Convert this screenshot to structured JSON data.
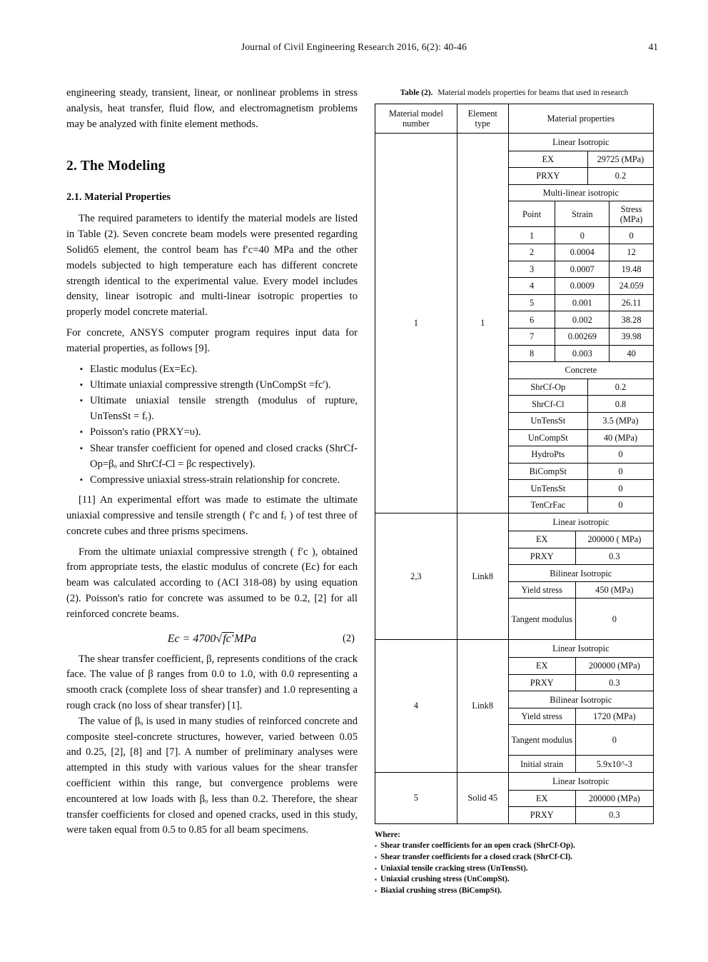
{
  "page": {
    "journal_header": "Journal of Civil Engineering Research 2016, 6(2): 40-46",
    "page_number": "41"
  },
  "left": {
    "bullet_marker": "▪",
    "p1": "engineering steady, transient, linear, or nonlinear problems in stress analysis, heat transfer, fluid flow, and electromagnetism problems may be analyzed with finite element methods.",
    "h2": "2. The Modeling",
    "h3": "2.1. Material Properties",
    "p2": "The required parameters to identify the material models are listed in Table (2). Seven concrete beam models were presented regarding Solid65 element, the control beam has f′c=40 MPa and the other models subjected to high temperature each has different concrete strength identical to the experimental value. Every model includes density, linear isotropic and multi-linear isotropic properties to properly model concrete material.",
    "p3": "For concrete, ANSYS computer program requires input data for material properties, as follows [9].",
    "bullets": [
      "Elastic modulus (Ex=Ec).",
      "Ultimate uniaxial compressive strength (UnCompSt =fc').",
      "Ultimate uniaxial tensile strength (modulus of rupture, UnTensSt = fᵣ).",
      "Poisson's ratio (PRXY=υ).",
      "Shear transfer coefficient for opened and closed cracks (ShrCf-Op=βₒ and ShrCf-Cl = βc respectively).",
      "Compressive uniaxial stress-strain relationship for concrete."
    ],
    "p4": "[11] An experimental effort was made to estimate the ultimate uniaxial compressive and tensile strength ( f′c and fᵣ ) of test three of concrete cubes and three prisms specimens.",
    "p5": "From the ultimate uniaxial compressive strength ( f′c ), obtained from appropriate tests, the elastic modulus of concrete (Ec) for each beam was calculated according to (ACI 318-08) by using equation (2). Poisson's ratio for concrete was assumed to be 0.2, [2] for all reinforced concrete beams.",
    "equation": {
      "pre": "Ec = 4700",
      "root": "√",
      "radicand": "fc'",
      "unit": "MPa",
      "number": "(2)"
    },
    "p6": "The shear transfer coefficient, β, represents conditions of the crack face. The value of β ranges from 0.0 to 1.0, with 0.0 representing a smooth crack (complete loss of shear transfer) and 1.0 representing a rough crack (no loss of shear transfer) [1].",
    "p7": "The value of βₒ is used in many studies of reinforced concrete and composite steel-concrete structures, however, varied between 0.05 and 0.25, [2], [8] and [7]. A number of preliminary analyses were attempted in this study with various values for the shear transfer coefficient within this range, but convergence problems were encountered at low loads with βₒ less than 0.2. Therefore, the shear transfer coefficients for closed and opened cracks, used in this study, were taken equal from 0.5 to 0.85 for all beam specimens."
  },
  "table": {
    "caption_label": "Table (2).",
    "caption_text": "Material models properties for beams that used in research",
    "headers": {
      "model": "Material model number",
      "element": "Element type",
      "properties": "Material properties"
    },
    "s1": {
      "model": "1",
      "element": "1",
      "linear_title": "Linear Isotropic",
      "ex_label": "EX",
      "ex_value": "29725 (MPa)",
      "prxy_label": "PRXY",
      "prxy_value": "0.2",
      "multilinear_title": "Multi-linear isotropic",
      "pt_head": {
        "point": "Point",
        "strain": "Strain",
        "stress": "Stress (MPa)"
      },
      "points": [
        [
          "1",
          "0",
          "0"
        ],
        [
          "2",
          "0.0004",
          "12"
        ],
        [
          "3",
          "0.0007",
          "19.48"
        ],
        [
          "4",
          "0.0009",
          "24.059"
        ],
        [
          "5",
          "0.001",
          "26.11"
        ],
        [
          "6",
          "0.002",
          "38.28"
        ],
        [
          "7",
          "0.00269",
          "39.98"
        ],
        [
          "8",
          "0.003",
          "40"
        ]
      ],
      "concrete_title": "Concrete",
      "concrete": [
        [
          "ShrCf-Op",
          "0.2"
        ],
        [
          "ShrCf-Cl",
          "0.8"
        ],
        [
          "UnTensSt",
          "3.5 (MPa)"
        ],
        [
          "UnCompSt",
          "40 (MPa)"
        ],
        [
          "HydroPts",
          "0"
        ],
        [
          "BiCompSt",
          "0"
        ],
        [
          "UnTensSt",
          "0"
        ],
        [
          "TenCrFac",
          "0"
        ]
      ]
    },
    "s2": {
      "model": "2,3",
      "element": "Link8",
      "linear_title": "Linear isotropic",
      "ex_label": "EX",
      "ex_value": "200000 ( MPa)",
      "prxy_label": "PRXY",
      "prxy_value": "0.3",
      "bilinear_title": "Bilinear Isotropic",
      "yield_label": "Yield stress",
      "yield_value": "450 (MPa)",
      "tangent_label": "Tangent modulus",
      "tangent_value": "0"
    },
    "s3": {
      "model": "4",
      "element": "Link8",
      "linear_title": "Linear Isotropic",
      "ex_label": "EX",
      "ex_value": "200000 (MPa)",
      "prxy_label": "PRXY",
      "prxy_value": "0.3",
      "bilinear_title": "Bilinear Isotropic",
      "yield_label": "Yield stress",
      "yield_value": "1720 (MPa)",
      "tangent_label": "Tangent modulus",
      "tangent_value": "0",
      "initial_label": "Initial strain",
      "initial_value": "5.9x10^-3"
    },
    "s4": {
      "model": "5",
      "element": "Solid 45",
      "linear_title": "Linear Isotropic",
      "ex_label": "EX",
      "ex_value": "200000 (MPa)",
      "prxy_label": "PRXY",
      "prxy_value": "0.3"
    },
    "notes": {
      "marker": "▪",
      "where": "Where:",
      "items": [
        "Shear transfer coefficients for an open crack (ShrCf-Op).",
        "Shear transfer coefficients for a closed crack (ShrCf-Cl).",
        "Uniaxial tensile cracking stress (UnTensSt).",
        "Uniaxial crushing stress (UnCompSt).",
        "Biaxial crushing stress (BiCompSt)."
      ]
    }
  }
}
